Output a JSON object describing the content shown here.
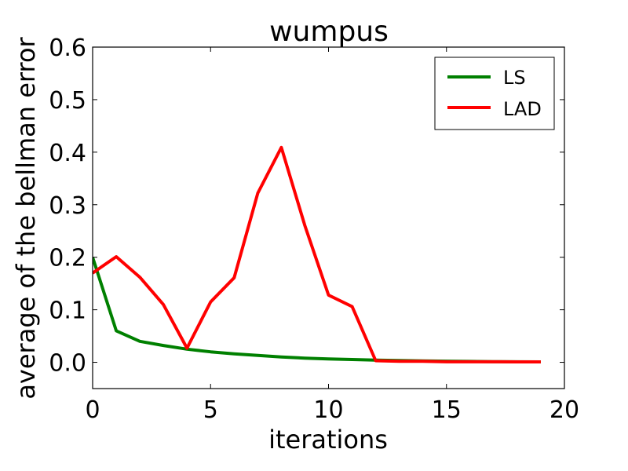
{
  "chart_data": {
    "type": "line",
    "title": "wumpus",
    "xlabel": "iterations",
    "ylabel": "average of the bellman error",
    "xlim": [
      0,
      20
    ],
    "ylim": [
      -0.05,
      0.6
    ],
    "xticks": [
      0,
      5,
      10,
      15,
      20
    ],
    "xtick_labels": [
      "0",
      "5",
      "10",
      "15",
      "20"
    ],
    "yticks": [
      0.0,
      0.1,
      0.2,
      0.3,
      0.4,
      0.5,
      0.6
    ],
    "ytick_labels": [
      "0.0",
      "0.1",
      "0.2",
      "0.3",
      "0.4",
      "0.5",
      "0.6"
    ],
    "grid": false,
    "legend_position": "top-right",
    "x": [
      0,
      1,
      2,
      3,
      4,
      5,
      6,
      7,
      8,
      9,
      10,
      11,
      12,
      13,
      14,
      15,
      16,
      17,
      18,
      19
    ],
    "series": [
      {
        "name": "LS",
        "color": "#008000",
        "values": [
          0.2,
          0.06,
          0.04,
          0.032,
          0.025,
          0.02,
          0.016,
          0.013,
          0.01,
          0.008,
          0.0065,
          0.0053,
          0.0043,
          0.0035,
          0.0028,
          0.0022,
          0.0017,
          0.0013,
          0.001,
          0.0008
        ]
      },
      {
        "name": "LAD",
        "color": "#ff0000",
        "values": [
          0.17,
          0.201,
          0.162,
          0.11,
          0.027,
          0.115,
          0.161,
          0.322,
          0.409,
          0.26,
          0.128,
          0.106,
          0.003,
          0.002,
          0.002,
          0.001,
          0.001,
          0.001,
          0.0008,
          0.0008
        ]
      }
    ]
  }
}
